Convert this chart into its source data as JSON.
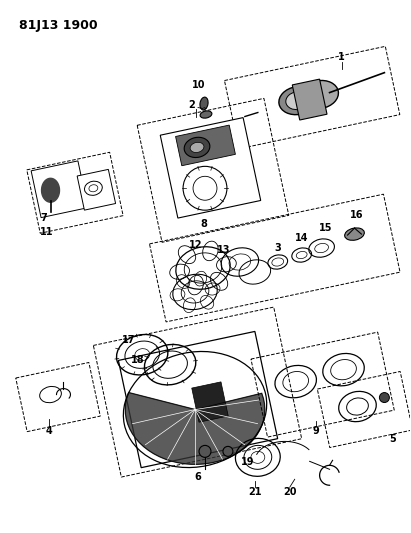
{
  "title": "81J13 1900",
  "bg_color": "#ffffff",
  "fg_color": "#000000",
  "lw": 0.7,
  "figsize": [
    4.11,
    5.33
  ],
  "dpi": 100
}
